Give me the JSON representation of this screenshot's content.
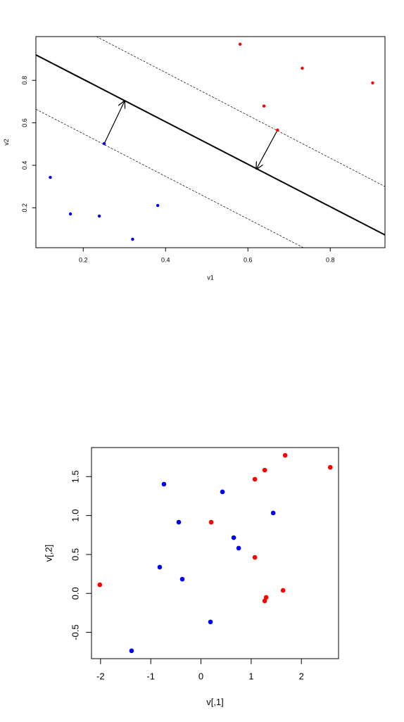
{
  "chart_data": [
    {
      "type": "scatter",
      "x_label": "v1",
      "y_label": "v2",
      "xlim": [
        0.085,
        0.933
      ],
      "ylim": [
        0.012,
        1.006
      ],
      "xticks": [
        0.2,
        0.4,
        0.6,
        0.8
      ],
      "yticks": [
        0.2,
        0.4,
        0.6,
        0.8
      ],
      "series": [
        {
          "color": "#0000ff",
          "x": [
            0.12,
            0.169,
            0.239,
            0.251,
            0.32,
            0.381
          ],
          "values": [
            0.343,
            0.171,
            0.161,
            0.502,
            0.052,
            0.211
          ]
        },
        {
          "color": "#ff0000",
          "x": [
            0.581,
            0.732,
            0.903,
            0.639,
            0.672
          ],
          "values": [
            0.97,
            0.857,
            0.788,
            0.679,
            0.566
          ]
        }
      ],
      "lines": [
        {
          "style": "solid",
          "width": 2,
          "x": [
            0.085,
            0.933
          ],
          "y": [
            0.92,
            0.072
          ]
        },
        {
          "style": "dashed",
          "width": 0.7,
          "x": [
            0.232,
            0.933
          ],
          "y": [
            1.006,
            0.3
          ]
        },
        {
          "style": "dashed",
          "width": 0.7,
          "x": [
            0.085,
            0.735
          ],
          "y": [
            0.664,
            0.012
          ]
        }
      ],
      "arrows": [
        {
          "x": [
            0.251,
            0.301
          ],
          "y": [
            0.502,
            0.705
          ]
        },
        {
          "x": [
            0.672,
            0.62
          ],
          "y": [
            0.566,
            0.38
          ]
        }
      ]
    },
    {
      "type": "scatter",
      "x_label": "v[,1]",
      "y_label": "v[,2]",
      "xlim": [
        -2.18,
        2.74
      ],
      "ylim": [
        -0.838,
        1.873
      ],
      "xticks": [
        -2,
        -1,
        0,
        1,
        2
      ],
      "yticks": [
        -0.5,
        {
          "value": 0,
          "label": "0.0"
        },
        0.5,
        {
          "value": 1,
          "label": "1.0"
        },
        1.5
      ],
      "series": [
        {
          "color": "#0000ff",
          "x": [
            -0.737,
            0.428,
            1.439,
            -0.442,
            0.653,
            0.751,
            -0.821,
            -0.372,
            0.189,
            -1.382
          ],
          "values": [
            1.403,
            1.304,
            1.033,
            0.915,
            0.716,
            0.581,
            0.337,
            0.183,
            -0.366,
            -0.737
          ]
        },
        {
          "color": "#ff0000",
          "x": [
            1.677,
            2.575,
            1.27,
            1.074,
            0.204,
            1.074,
            -2.014,
            1.635,
            1.298,
            1.27
          ],
          "values": [
            1.773,
            1.619,
            1.583,
            1.466,
            0.915,
            0.463,
            0.111,
            0.039,
            -0.051,
            -0.096
          ]
        }
      ]
    }
  ]
}
